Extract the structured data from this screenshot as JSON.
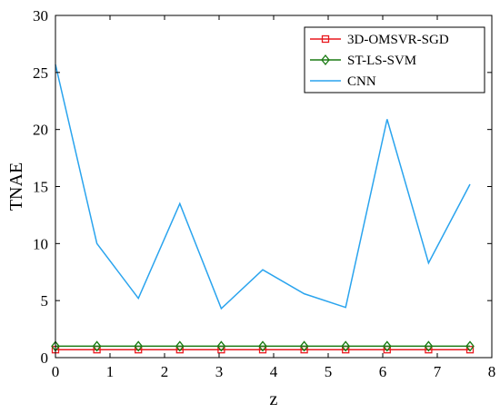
{
  "chart_data": {
    "type": "line",
    "xlabel": "z",
    "ylabel": "TNAE",
    "xlim": [
      0,
      8
    ],
    "ylim": [
      0,
      30
    ],
    "xticks": [
      "0",
      "1",
      "2",
      "3",
      "4",
      "5",
      "6",
      "7",
      "8"
    ],
    "yticks": [
      "0",
      "5",
      "10",
      "15",
      "20",
      "25",
      "30"
    ],
    "grid": false,
    "legend_position": "top-right",
    "x": [
      0,
      0.76,
      1.52,
      2.28,
      3.04,
      3.8,
      4.56,
      5.32,
      6.08,
      6.84,
      7.6
    ],
    "series": [
      {
        "name": "3D-OMSVR-SGD",
        "color": "#e8191e",
        "marker": "square",
        "values": [
          0.7,
          0.7,
          0.7,
          0.7,
          0.7,
          0.7,
          0.7,
          0.7,
          0.7,
          0.7,
          0.7
        ]
      },
      {
        "name": "ST-LS-SVM",
        "color": "#1a7a12",
        "marker": "diamond",
        "values": [
          1.0,
          1.0,
          1.0,
          1.0,
          1.0,
          1.0,
          1.0,
          1.0,
          1.0,
          1.0,
          1.0
        ]
      },
      {
        "name": "CNN",
        "color": "#2aa4ee",
        "marker": "none",
        "values": [
          25.7,
          10.0,
          5.2,
          13.5,
          4.3,
          7.7,
          5.6,
          4.4,
          20.9,
          8.3,
          15.2
        ]
      }
    ]
  }
}
